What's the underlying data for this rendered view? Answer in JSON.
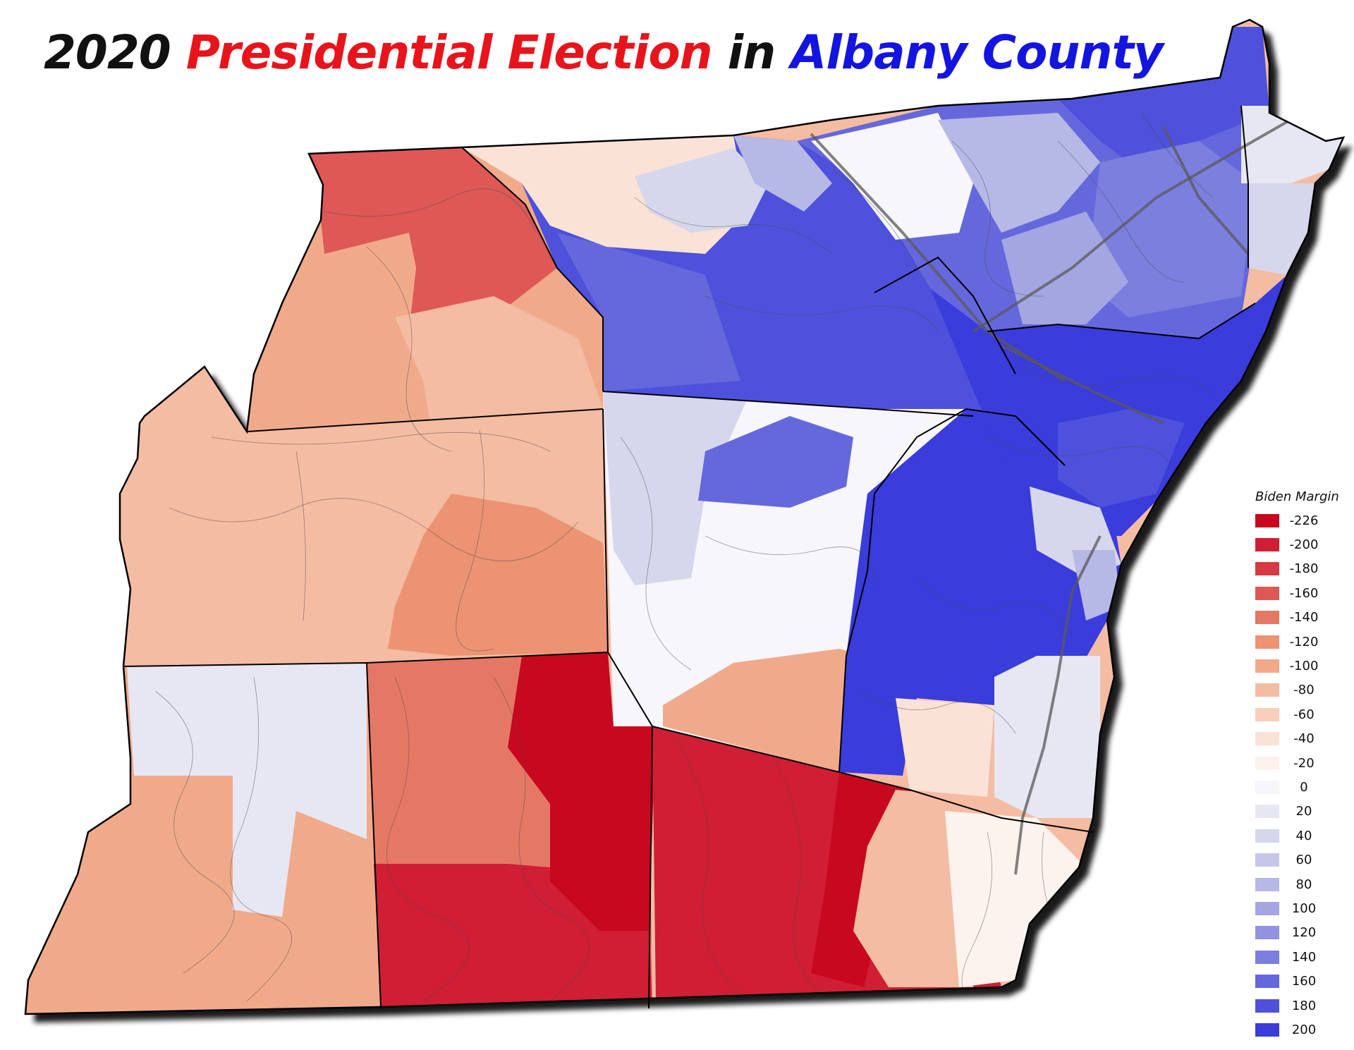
{
  "title": {
    "part1": "2020",
    "part2": "Presidential Election",
    "part3": "in",
    "part4": "Albany County",
    "colors": {
      "part1": "#111111",
      "part2": "#e8141c",
      "part3": "#111111",
      "part4": "#1414e0"
    }
  },
  "legend": {
    "title": "Biden Margin",
    "items": [
      {
        "label": "-226",
        "color": "#c8081f"
      },
      {
        "label": "-200",
        "color": "#d01e34"
      },
      {
        "label": "-180",
        "color": "#d73a42"
      },
      {
        "label": "-160",
        "color": "#de5856"
      },
      {
        "label": "-140",
        "color": "#e57864"
      },
      {
        "label": "-120",
        "color": "#ec9373"
      },
      {
        "label": "-100",
        "color": "#f0aa8a"
      },
      {
        "label": "-80",
        "color": "#f4bca2"
      },
      {
        "label": "-60",
        "color": "#f7cfbb"
      },
      {
        "label": "-40",
        "color": "#fae2d6"
      },
      {
        "label": "-20",
        "color": "#fcf3ee"
      },
      {
        "label": "0",
        "color": "#f6f6fb"
      },
      {
        "label": "20",
        "color": "#e6e7f2"
      },
      {
        "label": "40",
        "color": "#d6d7ec"
      },
      {
        "label": "60",
        "color": "#c6c7e8"
      },
      {
        "label": "80",
        "color": "#b6b8e5"
      },
      {
        "label": "100",
        "color": "#a4a6e2"
      },
      {
        "label": "120",
        "color": "#9193e0"
      },
      {
        "label": "140",
        "color": "#7c7fde"
      },
      {
        "label": "160",
        "color": "#6568dc"
      },
      {
        "label": "180",
        "color": "#4e51db"
      },
      {
        "label": "200",
        "color": "#3a3cdb"
      }
    ]
  }
}
